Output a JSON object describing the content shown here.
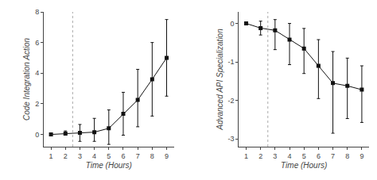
{
  "chart_data": [
    {
      "type": "line",
      "x": [
        1,
        2,
        3,
        4,
        5,
        6,
        7,
        8,
        9
      ],
      "values": [
        0.0,
        0.05,
        0.1,
        0.15,
        0.4,
        1.35,
        2.25,
        3.6,
        5.0
      ],
      "yerr_low": [
        0.0,
        0.08,
        0.55,
        0.6,
        1.05,
        1.4,
        1.75,
        2.4,
        2.5
      ],
      "yerr_high": [
        0.0,
        0.18,
        0.55,
        0.9,
        1.2,
        1.4,
        2.0,
        2.4,
        2.5
      ],
      "xlabel": "Time (Hours)",
      "ylabel": "Code Integration Action",
      "xlim": [
        0.5,
        9.5
      ],
      "ylim": [
        -0.8,
        8.0
      ],
      "xticks": [
        1,
        2,
        3,
        4,
        5,
        6,
        7,
        8,
        9
      ],
      "yticks": [
        0,
        2,
        4,
        6,
        8
      ],
      "vline_x": 2.5,
      "color": "#111111",
      "marker": "square",
      "grid": false
    },
    {
      "type": "line",
      "x": [
        1,
        2,
        3,
        4,
        5,
        6,
        7,
        8,
        9
      ],
      "values": [
        0.0,
        -0.12,
        -0.18,
        -0.42,
        -0.65,
        -1.1,
        -1.55,
        -1.62,
        -1.72
      ],
      "yerr_low": [
        0.0,
        0.18,
        0.5,
        0.65,
        0.65,
        0.85,
        1.3,
        0.85,
        0.85
      ],
      "yerr_high": [
        0.0,
        0.18,
        0.28,
        0.42,
        0.52,
        0.68,
        0.82,
        0.72,
        0.62
      ],
      "xlabel": "Time (Hours)",
      "ylabel": "Advanced API Specialization",
      "xlim": [
        0.5,
        9.5
      ],
      "ylim": [
        -3.2,
        0.3
      ],
      "xticks": [
        1,
        2,
        3,
        4,
        5,
        6,
        7,
        8,
        9
      ],
      "yticks": [
        0,
        -1,
        -2,
        -3
      ],
      "vline_x": 2.5,
      "color": "#111111",
      "marker": "square",
      "grid": false
    }
  ]
}
